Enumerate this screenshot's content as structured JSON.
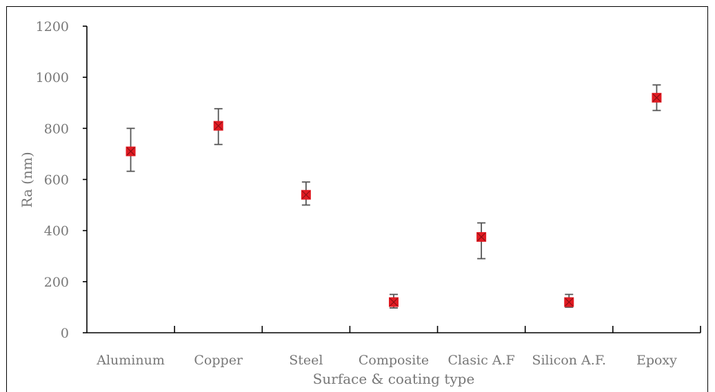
{
  "chart_data": {
    "type": "scatter",
    "xlabel": "Surface & coating type",
    "ylabel": "Ra (nm)",
    "categories": [
      "Aluminum",
      "Copper",
      "Steel",
      "Composite",
      "Clasic A.F",
      "Silicon A.F.",
      "Epoxy"
    ],
    "values": [
      710,
      810,
      540,
      120,
      375,
      120,
      920
    ],
    "error_low": [
      632,
      737,
      500,
      97,
      290,
      100,
      870
    ],
    "error_high": [
      800,
      877,
      590,
      150,
      430,
      150,
      970
    ],
    "ylim": [
      0,
      1200
    ],
    "yticks": [
      "0",
      "200",
      "400",
      "600",
      "800",
      "1000",
      "1200"
    ],
    "grid": false,
    "legend": "none",
    "marker_color": "#e11b22",
    "error_bar_color": "#555555"
  }
}
